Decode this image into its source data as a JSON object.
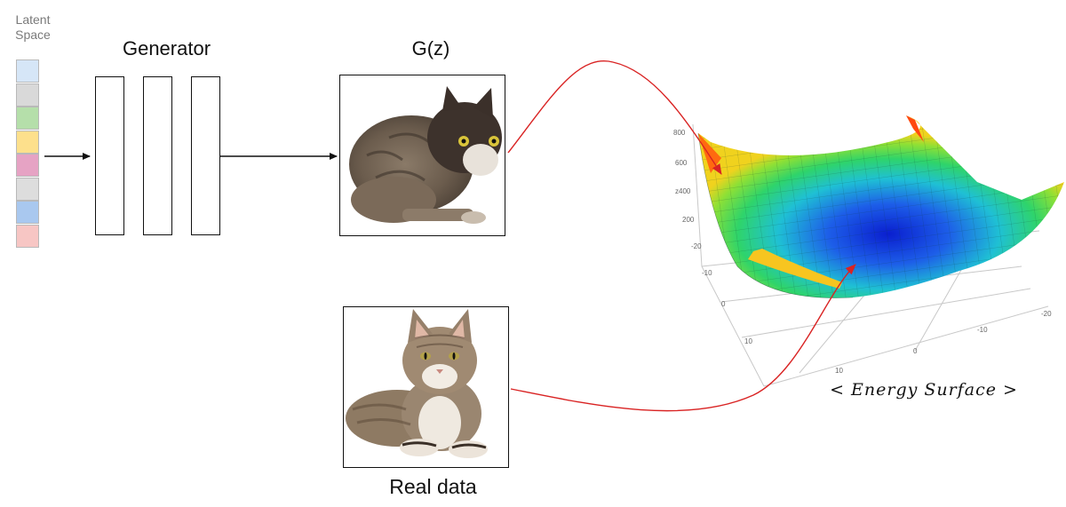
{
  "latent": {
    "title_line1": "Latent",
    "title_line2": "Space",
    "cells": [
      "#d6e6f7",
      "#d9d9d9",
      "#b5dfaa",
      "#fde08c",
      "#e6a3c4",
      "#dddddd",
      "#a9c8ef",
      "#f7c6c4"
    ]
  },
  "generator": {
    "label": "Generator",
    "layers": 3
  },
  "generated": {
    "label": "G(z)"
  },
  "real": {
    "label": "Real data"
  },
  "energy": {
    "caption": "< Energy Surface >",
    "z_ticks": [
      "800",
      "600",
      "z400",
      "200",
      "-20"
    ],
    "y_ticks": [
      "-10",
      "0",
      "10"
    ],
    "x_ticks": [
      "-20",
      "-10",
      "0",
      "10"
    ]
  },
  "colors": {
    "arrow": "#d92323",
    "line": "#111111"
  }
}
